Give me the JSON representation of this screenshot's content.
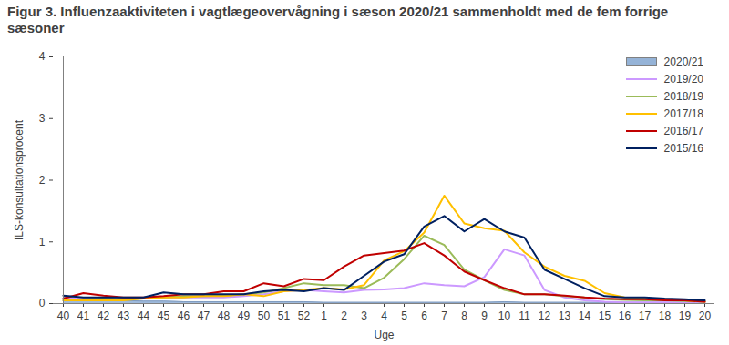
{
  "chart_data": {
    "type": "line",
    "title": "Figur 3. Influenzaaktiviteten i vagtlægeovervågning i sæson 2020/21 sammenholdt med de fem forrige sæsoner",
    "x_label": "Uge",
    "y_label": "ILS-konsultationsprocent",
    "categories": [
      "40",
      "41",
      "42",
      "43",
      "44",
      "45",
      "46",
      "47",
      "48",
      "49",
      "50",
      "51",
      "52",
      "1",
      "2",
      "3",
      "4",
      "5",
      "6",
      "7",
      "8",
      "9",
      "10",
      "11",
      "12",
      "13",
      "14",
      "15",
      "16",
      "17",
      "18",
      "19",
      "20"
    ],
    "ylim": [
      0,
      4
    ],
    "yticks": [
      0,
      1,
      2,
      3,
      4
    ],
    "grid": false,
    "legend": "top-right",
    "series": [
      {
        "name": "2020/21",
        "type": "area",
        "color": "#95b3d7",
        "values": [
          0.12,
          0.08,
          0.06,
          0.05,
          0.04,
          0.04,
          0.03,
          0.03,
          0.03,
          0.03,
          0.03,
          0.03,
          0.03,
          0.02,
          0.02,
          0.02,
          0.02,
          0.02,
          0.02,
          0.02,
          0.02,
          0.02,
          0.03,
          0.02,
          0.02,
          0.02,
          0.02,
          0.02,
          0.02,
          0.02,
          0.02,
          0.02,
          0.02
        ]
      },
      {
        "name": "2019/20",
        "type": "line",
        "color": "#cc99ff",
        "values": [
          0.08,
          0.08,
          0.08,
          0.08,
          0.08,
          0.08,
          0.1,
          0.1,
          0.1,
          0.12,
          0.15,
          0.2,
          0.22,
          0.2,
          0.18,
          0.22,
          0.23,
          0.25,
          0.33,
          0.3,
          0.28,
          0.43,
          0.88,
          0.78,
          0.22,
          0.1,
          0.05,
          0.03,
          0.02,
          0.02,
          0.02,
          0.02,
          0.02
        ]
      },
      {
        "name": "2018/19",
        "type": "line",
        "color": "#9bbb59",
        "values": [
          0.05,
          0.07,
          0.08,
          0.07,
          0.08,
          0.1,
          0.12,
          0.12,
          0.13,
          0.15,
          0.18,
          0.25,
          0.33,
          0.3,
          0.3,
          0.25,
          0.42,
          0.72,
          1.1,
          0.95,
          0.55,
          0.38,
          0.22,
          0.15,
          0.15,
          0.12,
          0.1,
          0.07,
          0.06,
          0.05,
          0.05,
          0.04,
          0.03
        ]
      },
      {
        "name": "2017/18",
        "type": "line",
        "color": "#ffc000",
        "values": [
          0.05,
          0.05,
          0.05,
          0.05,
          0.08,
          0.1,
          0.1,
          0.12,
          0.12,
          0.15,
          0.12,
          0.2,
          0.22,
          0.25,
          0.23,
          0.3,
          0.7,
          0.85,
          1.15,
          1.75,
          1.3,
          1.22,
          1.18,
          0.83,
          0.6,
          0.45,
          0.37,
          0.17,
          0.1,
          0.08,
          0.07,
          0.05,
          0.03
        ]
      },
      {
        "name": "2016/17",
        "type": "line",
        "color": "#c00000",
        "values": [
          0.08,
          0.17,
          0.13,
          0.1,
          0.1,
          0.12,
          0.15,
          0.15,
          0.2,
          0.2,
          0.33,
          0.28,
          0.4,
          0.38,
          0.6,
          0.78,
          0.82,
          0.86,
          0.98,
          0.78,
          0.52,
          0.38,
          0.25,
          0.15,
          0.15,
          0.13,
          0.1,
          0.08,
          0.07,
          0.07,
          0.05,
          0.05,
          0.03
        ]
      },
      {
        "name": "2015/16",
        "type": "line",
        "color": "#002060",
        "values": [
          0.13,
          0.1,
          0.1,
          0.1,
          0.1,
          0.18,
          0.15,
          0.15,
          0.15,
          0.15,
          0.2,
          0.22,
          0.2,
          0.25,
          0.22,
          0.45,
          0.68,
          0.8,
          1.25,
          1.42,
          1.17,
          1.37,
          1.17,
          1.07,
          0.55,
          0.4,
          0.25,
          0.12,
          0.1,
          0.1,
          0.08,
          0.07,
          0.05
        ]
      }
    ]
  }
}
